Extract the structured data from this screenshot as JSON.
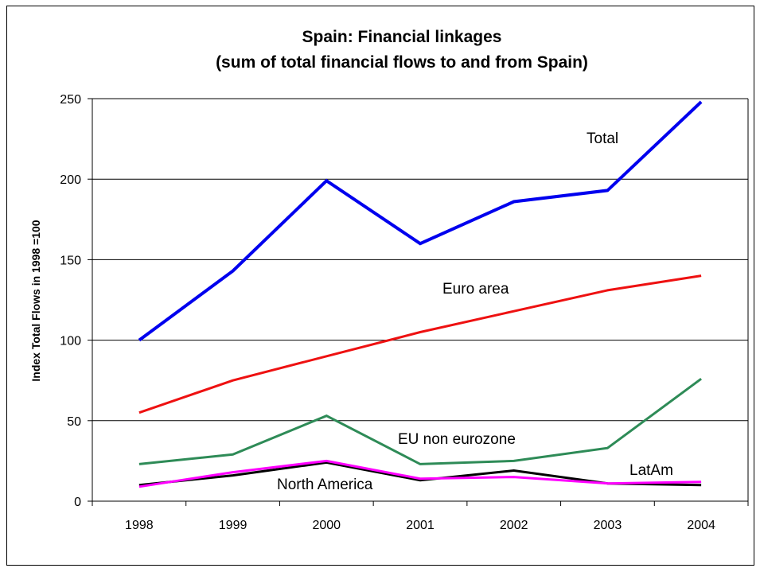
{
  "chart_data": {
    "type": "line",
    "title": "Spain: Financial linkages",
    "subtitle": "(sum of total financial flows to and from Spain)",
    "xlabel": "",
    "ylabel": "Index Total Flows in 1998 =100",
    "categories": [
      "1998",
      "1999",
      "2000",
      "2001",
      "2002",
      "2003",
      "2004"
    ],
    "ylim": [
      0,
      250
    ],
    "yticks": [
      0,
      50,
      100,
      150,
      200,
      250
    ],
    "grid": true,
    "legend": "none",
    "series": [
      {
        "name": "Total",
        "color": "#0000ee",
        "width": 4,
        "values": [
          100,
          143,
          199,
          160,
          186,
          193,
          248
        ]
      },
      {
        "name": "Euro area",
        "color": "#ee1111",
        "width": 3,
        "values": [
          55,
          75,
          90,
          105,
          118,
          131,
          140
        ]
      },
      {
        "name": "EU non eurozone",
        "color": "#2e8b57",
        "width": 3,
        "values": [
          23,
          29,
          53,
          23,
          25,
          33,
          76
        ]
      },
      {
        "name": "North America",
        "color": "#000000",
        "width": 3,
        "values": [
          10,
          16,
          24,
          13,
          19,
          11,
          10
        ]
      },
      {
        "name": "LatAm",
        "color": "#ff00ff",
        "width": 3,
        "values": [
          9,
          18,
          25,
          14,
          15,
          11,
          12
        ]
      }
    ]
  }
}
